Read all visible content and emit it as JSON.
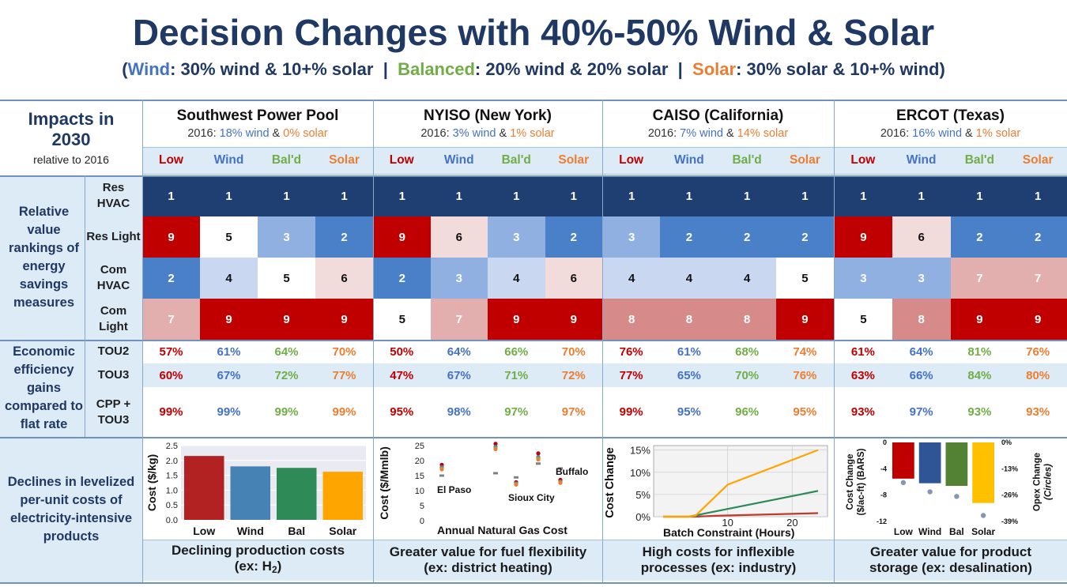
{
  "title": "Decision Changes with 40%-50% Wind & Solar",
  "subtitle": {
    "open": "(",
    "wind_word": "Wind",
    "wind_desc": ": 30% wind & 10+% solar  |  ",
    "bal_word": "Balanced",
    "bal_desc": ": 20% wind & 20% solar  |  ",
    "sol_word": "Solar",
    "sol_desc": ": 30% solar & 10+% wind)"
  },
  "corner": {
    "line1": "Impacts in",
    "line2": "2030",
    "line3": "relative to 2016"
  },
  "regions": [
    {
      "name": "Southwest Power Pool",
      "prefix": "2016: ",
      "wind": "18% wind",
      "amp": " & ",
      "solar": "0% solar"
    },
    {
      "name": "NYISO (New York)",
      "prefix": "2016: ",
      "wind": "3% wind",
      "amp": " & ",
      "solar": "1% solar"
    },
    {
      "name": "CAISO (California)",
      "prefix": "2016: ",
      "wind": "7% wind",
      "amp": " & ",
      "solar": "14% solar"
    },
    {
      "name": "ERCOT (Texas)",
      "prefix": "2016: ",
      "wind": "16% wind",
      "amp": " & ",
      "solar": "1% solar"
    }
  ],
  "scenarios": [
    "Low",
    "Wind",
    "Bal'd",
    "Solar"
  ],
  "rank_label": "Relative value rankings of energy savings measures",
  "rank_rows": [
    {
      "label": "Res HVAC",
      "values": [
        1,
        1,
        1,
        1,
        1,
        1,
        1,
        1,
        1,
        1,
        1,
        1,
        1,
        1,
        1,
        1
      ]
    },
    {
      "label": "Res Light",
      "values": [
        9,
        5,
        3,
        2,
        9,
        6,
        3,
        2,
        3,
        2,
        2,
        2,
        9,
        6,
        2,
        2
      ]
    },
    {
      "label": "Com HVAC",
      "values": [
        2,
        4,
        5,
        6,
        2,
        3,
        4,
        6,
        4,
        4,
        4,
        5,
        3,
        3,
        7,
        7
      ]
    },
    {
      "label": "Com Light",
      "values": [
        7,
        9,
        9,
        9,
        5,
        7,
        9,
        9,
        8,
        8,
        8,
        9,
        5,
        8,
        9,
        9
      ]
    }
  ],
  "rank_colors": {
    "1": "#1f3f73",
    "2": "#4a80c8",
    "3": "#8fb0e0",
    "4": "#c9d8f0",
    "5": "#ffffff",
    "6": "#f2dbdb",
    "7": "#e3aeae",
    "8": "#d68a8a",
    "9": "#c00000"
  },
  "eff_label": "Economic efficiency gains compared to flat rate",
  "eff_rows": [
    {
      "label": "TOU2",
      "values": [
        "57%",
        "61%",
        "64%",
        "70%",
        "50%",
        "64%",
        "66%",
        "70%",
        "76%",
        "61%",
        "68%",
        "74%",
        "61%",
        "64%",
        "81%",
        "76%"
      ]
    },
    {
      "label": "TOU3",
      "values": [
        "60%",
        "67%",
        "72%",
        "77%",
        "47%",
        "67%",
        "71%",
        "72%",
        "77%",
        "65%",
        "70%",
        "76%",
        "63%",
        "66%",
        "84%",
        "80%"
      ]
    },
    {
      "label": "CPP + TOU3",
      "values": [
        "99%",
        "99%",
        "99%",
        "99%",
        "95%",
        "98%",
        "97%",
        "97%",
        "99%",
        "95%",
        "96%",
        "95%",
        "93%",
        "97%",
        "93%",
        "93%"
      ]
    }
  ],
  "decline_label": "Declines in levelized per-unit costs of electricity-intensive products",
  "colors": {
    "low": "#c00000",
    "wind": "#4472c4",
    "bal": "#70ad47",
    "solar": "#ed7d31",
    "navy": "#1f3864"
  },
  "captions": [
    {
      "line1": "Declining production costs",
      "line2": "(ex: H",
      "sub": "2",
      "line2b": ")"
    },
    {
      "line1": "Greater value for fuel flexibility",
      "line2": "(ex: district heating)"
    },
    {
      "line1": "High costs for inflexible",
      "line2": "processes (ex: industry)"
    },
    {
      "line1": "Greater value for product",
      "line2": "storage (ex: desalination)"
    }
  ],
  "chart_data": [
    {
      "type": "bar",
      "ylabel": "Cost ($/kg)",
      "categories": [
        "Low",
        "Wind",
        "Bal",
        "Solar"
      ],
      "values": [
        2.15,
        1.8,
        1.75,
        1.62
      ],
      "ylim": [
        0,
        2.5
      ],
      "yticks": [
        "0.0",
        "0.5",
        "1.0",
        "1.5",
        "2.0",
        "2.5"
      ],
      "colors": [
        "#b22222",
        "#4682b4",
        "#2e8b57",
        "#ffa500"
      ],
      "grid": true
    },
    {
      "type": "scatter",
      "ylabel": "Cost ($/Mmlb)",
      "xlabel": "Annual Natural Gas Cost",
      "ylim": [
        0,
        25
      ],
      "yticks": [
        "0",
        "5",
        "10",
        "15",
        "20",
        "25"
      ],
      "annotations": [
        "El Paso",
        "Sioux City",
        "Buffalo"
      ],
      "series": [
        {
          "values": [
            15,
            15.8,
            14.4,
            19,
            17.4
          ]
        },
        {
          "values": [
            18.6,
            25.6,
            12.8,
            22.4,
            13.6
          ]
        },
        {
          "values": [
            17.8,
            24.6,
            12.4,
            21.2,
            13
          ]
        },
        {
          "values": [
            17.4,
            24.2,
            12.2,
            20.8,
            12.8
          ]
        },
        {
          "values": [
            17.1,
            23.8,
            12,
            20.4,
            12.6
          ]
        }
      ],
      "marker_colors": [
        "#808080",
        "#c00000",
        "#4472c4",
        "#70ad47",
        "#ed7d31"
      ]
    },
    {
      "type": "line",
      "ylabel": "Cost Change",
      "xlabel": "Batch Constraint (Hours)",
      "xticks": [
        "10",
        "20"
      ],
      "yticks": [
        "0%",
        "5%",
        "10%",
        "15%"
      ],
      "ylim": [
        0,
        16
      ],
      "series": [
        {
          "x": [
            0,
            4,
            5,
            8,
            24
          ],
          "y": [
            0,
            0,
            0,
            0.2,
            0.8
          ],
          "color": "#c0392b"
        },
        {
          "x": [
            0,
            4,
            24
          ],
          "y": [
            0,
            0,
            5.8
          ],
          "color": "#2e8b57"
        },
        {
          "x": [
            0,
            4,
            5,
            10,
            24
          ],
          "y": [
            0,
            0,
            0.2,
            7.2,
            15
          ],
          "color": "#ffa500"
        }
      ]
    },
    {
      "type": "bar",
      "ylabel": "Cost Change ($/ac-ft) (BARS)",
      "ylabel2": "Opex Change (Circles)",
      "categories": [
        "Low",
        "Wind",
        "Bal",
        "Solar"
      ],
      "values": [
        -5.5,
        -6.2,
        -6.6,
        -9.2
      ],
      "ylim": [
        -12,
        0
      ],
      "yticks_left": [
        "0",
        "-4",
        "-8",
        "-12"
      ],
      "yticks_right": [
        "0%",
        "-13%",
        "-26%",
        "-39%"
      ],
      "circles": [
        -6.1,
        -7.5,
        -8.2,
        -11.1
      ],
      "colors": [
        "#c00000",
        "#2f5597",
        "#548235",
        "#ffc000"
      ]
    }
  ]
}
